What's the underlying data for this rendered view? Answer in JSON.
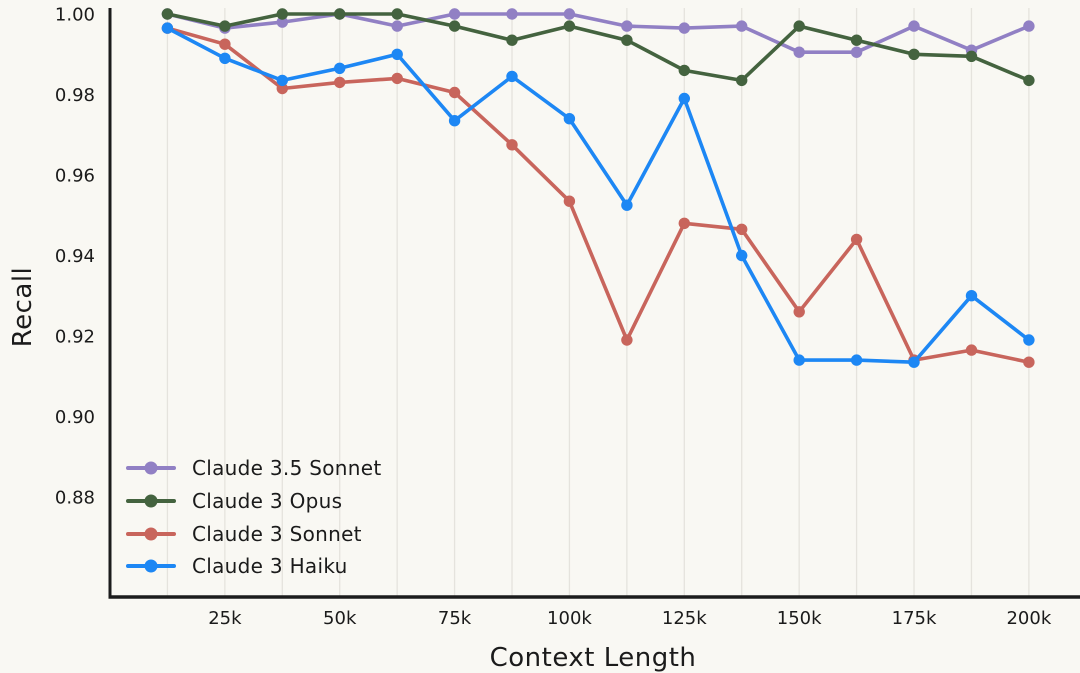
{
  "chart_data": {
    "type": "line",
    "title": "",
    "xlabel": "Context Length",
    "ylabel": "Recall",
    "x_values_k": [
      12.5,
      25,
      37.5,
      50,
      62.5,
      75,
      87.5,
      100,
      112.5,
      125,
      137.5,
      150,
      162.5,
      175,
      187.5,
      200
    ],
    "x_tick_values_k": [
      25,
      50,
      75,
      100,
      125,
      150,
      175,
      200
    ],
    "x_tick_labels": [
      "25k",
      "50k",
      "75k",
      "100k",
      "125k",
      "150k",
      "175k",
      "200k"
    ],
    "y_tick_values": [
      1.0,
      0.98,
      0.96,
      0.94,
      0.92,
      0.9,
      0.88
    ],
    "y_tick_labels": [
      "1.00",
      "0.98",
      "0.96",
      "0.94",
      "0.92",
      "0.90",
      "0.88"
    ],
    "ylim": [
      0.855,
      1.004
    ],
    "grid": "vertical-only",
    "legend_position": "bottom-left-inside",
    "series": [
      {
        "name": "Claude 3.5 Sonnet",
        "color": "#9180c4",
        "values": [
          1.0,
          0.9965,
          0.998,
          1.0,
          0.997,
          1.0,
          1.0,
          1.0,
          0.997,
          0.9965,
          0.997,
          0.9905,
          0.9905,
          0.997,
          0.991,
          0.997
        ]
      },
      {
        "name": "Claude 3 Opus",
        "color": "#44633f",
        "values": [
          1.0,
          0.997,
          1.0,
          1.0,
          1.0,
          0.997,
          0.9935,
          0.997,
          0.9935,
          0.986,
          0.9835,
          0.997,
          0.9935,
          0.99,
          0.9895,
          0.9835
        ]
      },
      {
        "name": "Claude 3 Sonnet",
        "color": "#c8655c",
        "values": [
          0.9965,
          0.9925,
          0.9815,
          0.983,
          0.984,
          0.9805,
          0.9675,
          0.9535,
          0.919,
          0.948,
          0.9465,
          0.926,
          0.944,
          0.914,
          0.9165,
          0.9135
        ]
      },
      {
        "name": "Claude 3 Haiku",
        "color": "#1d87f4",
        "values": [
          0.9965,
          0.989,
          0.9835,
          0.9865,
          0.99,
          0.9735,
          0.9845,
          0.974,
          0.9525,
          0.979,
          0.94,
          0.914,
          0.914,
          0.9135,
          0.93,
          0.919
        ]
      }
    ]
  },
  "colors": {
    "background": "#f9f8f3",
    "axis": "#1c1c1c",
    "gridline": "#e5e3dd",
    "text": "#1b1b1b"
  }
}
